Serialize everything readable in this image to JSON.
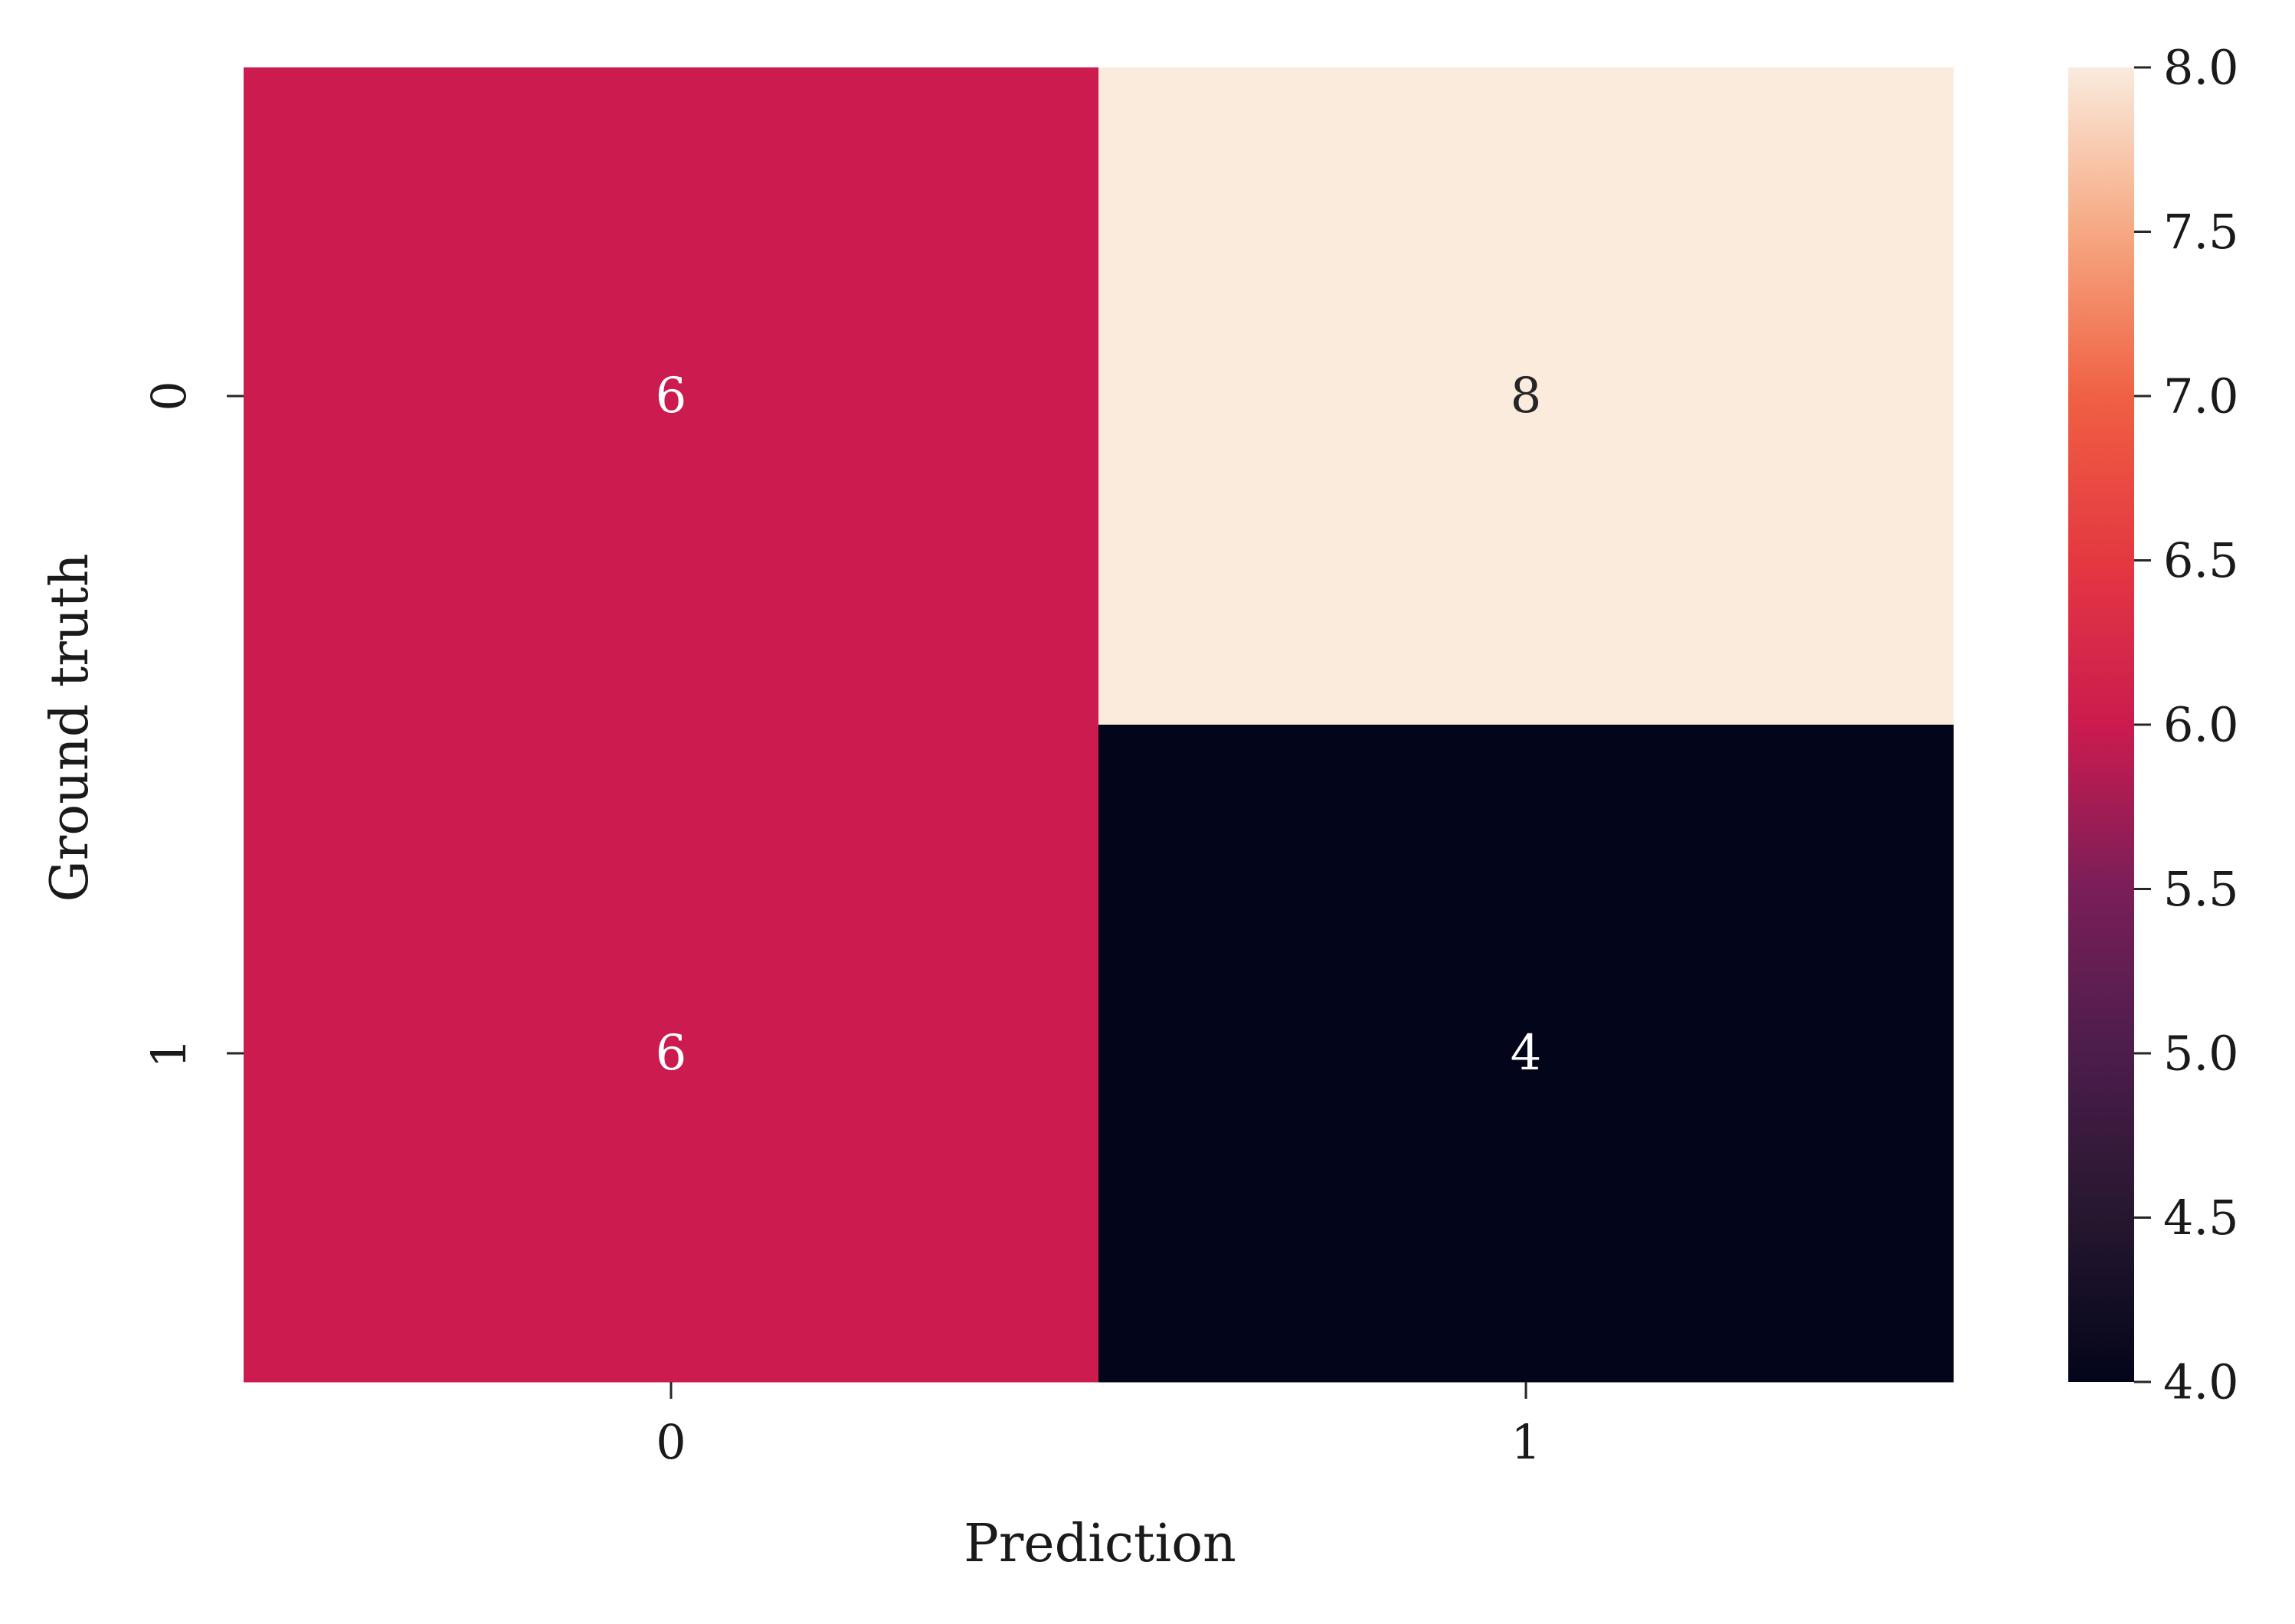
{
  "chart_data": {
    "type": "heatmap",
    "xlabel": "Prediction",
    "ylabel": "Ground truth",
    "x_categories": [
      "0",
      "1"
    ],
    "y_categories": [
      "0",
      "1"
    ],
    "values": [
      [
        6,
        8
      ],
      [
        6,
        4
      ]
    ],
    "colorbar": {
      "min": 4.0,
      "max": 8.0,
      "ticks": [
        "4.0",
        "4.5",
        "5.0",
        "5.5",
        "6.0",
        "6.5",
        "7.0",
        "7.5",
        "8.0"
      ],
      "colormap": "rocket",
      "placement": "right"
    },
    "annotated": true,
    "grid": false
  }
}
